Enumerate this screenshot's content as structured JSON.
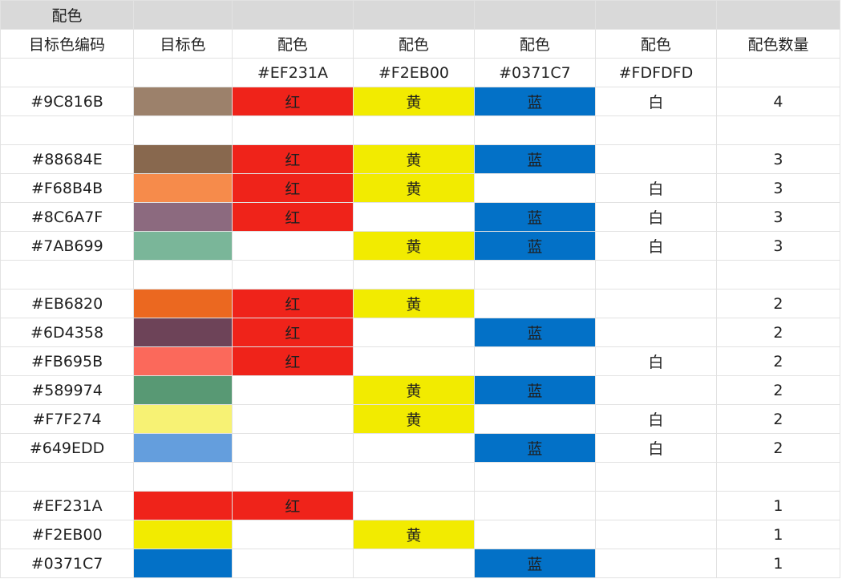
{
  "colors": {
    "header_fill": "#D9D9D9",
    "red": "#EF231A",
    "yellow": "#F2EB00",
    "blue": "#0371C7",
    "white": "#FDFDFD"
  },
  "title_row": {
    "label": "配色"
  },
  "header": [
    "目标色编码",
    "目标色",
    "配色",
    "配色",
    "配色",
    "配色",
    "配色数量"
  ],
  "codes_row": [
    "",
    "",
    "#EF231A",
    "#F2EB00",
    "#0371C7",
    "#FDFDFD",
    ""
  ],
  "rows": [
    {
      "code": "#9C816B",
      "swatch": "#9C816B",
      "red": "红",
      "yellow": "黄",
      "blue": "蓝",
      "white": "白",
      "count": "4"
    },
    {
      "gap": true
    },
    {
      "code": "#88684E",
      "swatch": "#88684E",
      "red": "红",
      "yellow": "黄",
      "blue": "蓝",
      "white": "",
      "count": "3"
    },
    {
      "code": "#F68B4B",
      "swatch": "#F68B4B",
      "red": "红",
      "yellow": "黄",
      "blue": "",
      "white": "白",
      "count": "3"
    },
    {
      "code": "#8C6A7F",
      "swatch": "#8C6A7F",
      "red": "红",
      "yellow": "",
      "blue": "蓝",
      "white": "白",
      "count": "3"
    },
    {
      "code": "#7AB699",
      "swatch": "#7AB699",
      "red": "",
      "yellow": "黄",
      "blue": "蓝",
      "white": "白",
      "count": "3"
    },
    {
      "gap": true
    },
    {
      "code": "#EB6820",
      "swatch": "#EB6820",
      "red": "红",
      "yellow": "黄",
      "blue": "",
      "white": "",
      "count": "2"
    },
    {
      "code": "#6D4358",
      "swatch": "#6D4358",
      "red": "红",
      "yellow": "",
      "blue": "蓝",
      "white": "",
      "count": "2"
    },
    {
      "code": "#FB695B",
      "swatch": "#FB695B",
      "red": "红",
      "yellow": "",
      "blue": "",
      "white": "白",
      "count": "2"
    },
    {
      "code": "#589974",
      "swatch": "#589974",
      "red": "",
      "yellow": "黄",
      "blue": "蓝",
      "white": "",
      "count": "2"
    },
    {
      "code": "#F7F274",
      "swatch": "#F7F274",
      "red": "",
      "yellow": "黄",
      "blue": "",
      "white": "白",
      "count": "2"
    },
    {
      "code": "#649EDD",
      "swatch": "#649EDD",
      "red": "",
      "yellow": "",
      "blue": "蓝",
      "white": "白",
      "count": "2"
    },
    {
      "gap": true
    },
    {
      "code": "#EF231A",
      "swatch": "#EF231A",
      "red": "红",
      "yellow": "",
      "blue": "",
      "white": "",
      "count": "1"
    },
    {
      "code": "#F2EB00",
      "swatch": "#F2EB00",
      "red": "",
      "yellow": "黄",
      "blue": "",
      "white": "",
      "count": "1"
    },
    {
      "code": "#0371C7",
      "swatch": "#0371C7",
      "red": "",
      "yellow": "",
      "blue": "蓝",
      "white": "",
      "count": "1"
    }
  ]
}
